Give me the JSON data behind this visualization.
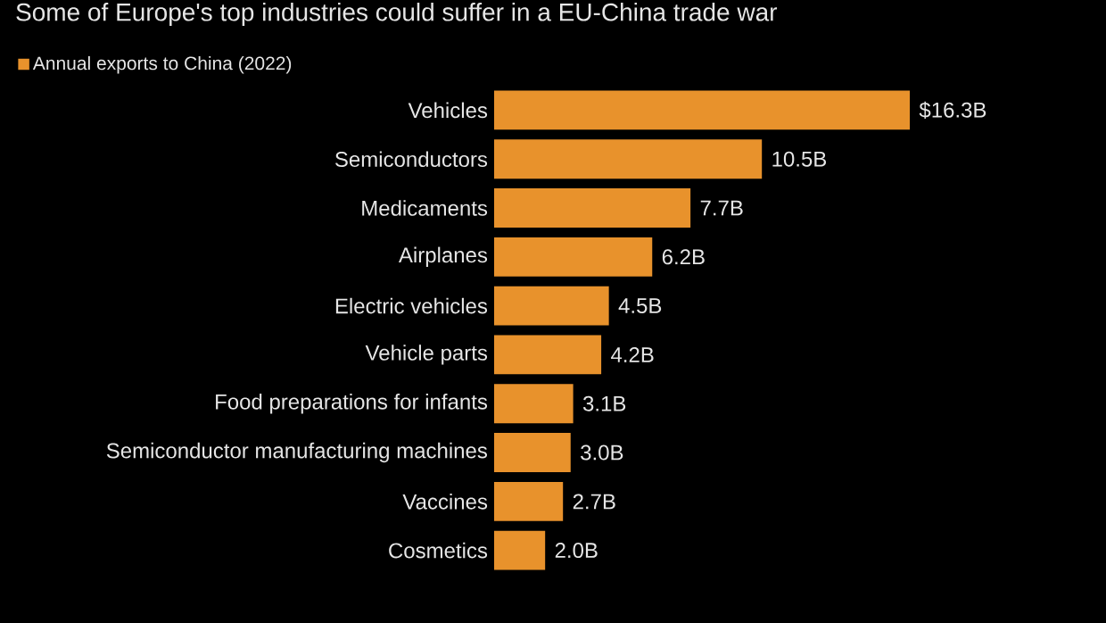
{
  "chart_data": {
    "type": "bar",
    "orientation": "horizontal",
    "title": "Some of Europe's top industries could suffer in a EU-China trade war",
    "categories": [
      "Vehicles",
      "Semiconductors",
      "Medicaments",
      "Airplanes",
      "Electric vehicles",
      "Vehicle parts",
      "Food preparations for infants",
      "Semiconductor manufacturing machines",
      "Vaccines",
      "Cosmetics"
    ],
    "series": [
      {
        "name": "Annual exports to China (2022)",
        "color": "#e8922c",
        "values": [
          16.3,
          10.5,
          7.7,
          6.2,
          4.5,
          4.2,
          3.1,
          3.0,
          2.7,
          2.0
        ],
        "value_labels": [
          "$16.3B",
          "10.5B",
          "7.7B",
          "6.2B",
          "4.5B",
          "4.2B",
          "3.1B",
          "3.0B",
          "2.7B",
          "2.0B"
        ]
      }
    ],
    "legend": "top left"
  }
}
